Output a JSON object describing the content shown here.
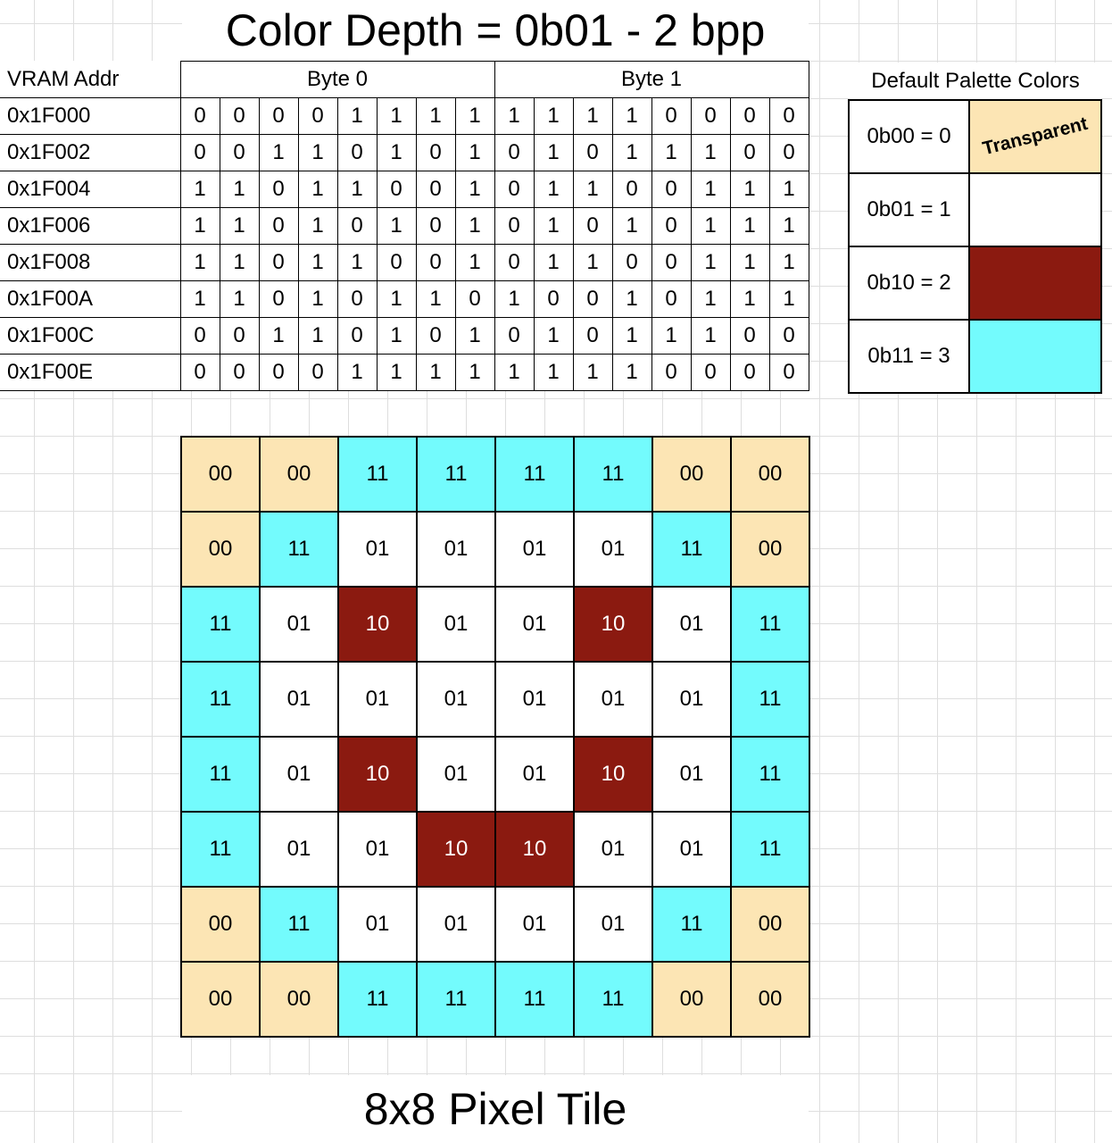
{
  "title": "Color Depth = 0b01 - 2 bpp",
  "caption": "8x8 Pixel Tile",
  "vram": {
    "addr_header": "VRAM Addr",
    "byte_headers": [
      "Byte 0",
      "Byte 1"
    ],
    "rows": [
      {
        "addr": "0x1F000",
        "bits": [
          "0",
          "0",
          "0",
          "0",
          "1",
          "1",
          "1",
          "1",
          "1",
          "1",
          "1",
          "1",
          "0",
          "0",
          "0",
          "0"
        ]
      },
      {
        "addr": "0x1F002",
        "bits": [
          "0",
          "0",
          "1",
          "1",
          "0",
          "1",
          "0",
          "1",
          "0",
          "1",
          "0",
          "1",
          "1",
          "1",
          "0",
          "0"
        ]
      },
      {
        "addr": "0x1F004",
        "bits": [
          "1",
          "1",
          "0",
          "1",
          "1",
          "0",
          "0",
          "1",
          "0",
          "1",
          "1",
          "0",
          "0",
          "1",
          "1",
          "1"
        ]
      },
      {
        "addr": "0x1F006",
        "bits": [
          "1",
          "1",
          "0",
          "1",
          "0",
          "1",
          "0",
          "1",
          "0",
          "1",
          "0",
          "1",
          "0",
          "1",
          "1",
          "1"
        ]
      },
      {
        "addr": "0x1F008",
        "bits": [
          "1",
          "1",
          "0",
          "1",
          "1",
          "0",
          "0",
          "1",
          "0",
          "1",
          "1",
          "0",
          "0",
          "1",
          "1",
          "1"
        ]
      },
      {
        "addr": "0x1F00A",
        "bits": [
          "1",
          "1",
          "0",
          "1",
          "0",
          "1",
          "1",
          "0",
          "1",
          "0",
          "0",
          "1",
          "0",
          "1",
          "1",
          "1"
        ]
      },
      {
        "addr": "0x1F00C",
        "bits": [
          "0",
          "0",
          "1",
          "1",
          "0",
          "1",
          "0",
          "1",
          "0",
          "1",
          "0",
          "1",
          "1",
          "1",
          "0",
          "0"
        ]
      },
      {
        "addr": "0x1F00E",
        "bits": [
          "0",
          "0",
          "0",
          "0",
          "1",
          "1",
          "1",
          "1",
          "1",
          "1",
          "1",
          "1",
          "0",
          "0",
          "0",
          "0"
        ]
      }
    ]
  },
  "palette": {
    "header": "Default Palette Colors",
    "entries": [
      {
        "label": "0b00 = 0",
        "code": "00",
        "color": "#fce5b4",
        "swatch_text": "Transparent"
      },
      {
        "label": "0b01 = 1",
        "code": "01",
        "color": "#ffffff",
        "swatch_text": ""
      },
      {
        "label": "0b10 = 2",
        "code": "10",
        "color": "#8b1a10",
        "swatch_text": ""
      },
      {
        "label": "0b11 = 3",
        "code": "11",
        "color": "#73fbfd",
        "swatch_text": ""
      }
    ]
  },
  "tile": [
    [
      "00",
      "00",
      "11",
      "11",
      "11",
      "11",
      "00",
      "00"
    ],
    [
      "00",
      "11",
      "01",
      "01",
      "01",
      "01",
      "11",
      "00"
    ],
    [
      "11",
      "01",
      "10",
      "01",
      "01",
      "10",
      "01",
      "11"
    ],
    [
      "11",
      "01",
      "01",
      "01",
      "01",
      "01",
      "01",
      "11"
    ],
    [
      "11",
      "01",
      "10",
      "01",
      "01",
      "10",
      "01",
      "11"
    ],
    [
      "11",
      "01",
      "01",
      "10",
      "10",
      "01",
      "01",
      "11"
    ],
    [
      "00",
      "11",
      "01",
      "01",
      "01",
      "01",
      "11",
      "00"
    ],
    [
      "00",
      "00",
      "11",
      "11",
      "11",
      "11",
      "00",
      "00"
    ]
  ]
}
